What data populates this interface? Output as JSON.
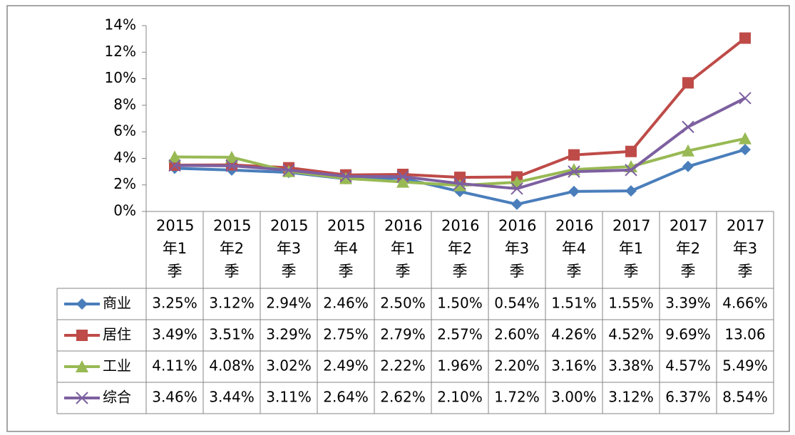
{
  "chart_data": {
    "type": "line",
    "categories": [
      "2015年1季",
      "2015年2季",
      "2015年3季",
      "2015年4季",
      "2016年1季",
      "2016年2季",
      "2016年3季",
      "2016年4季",
      "2017年1季",
      "2017年2季",
      "2017年3季"
    ],
    "series": [
      {
        "name": "商业",
        "color": "#4a7ebb",
        "marker": "diamond",
        "values": [
          3.25,
          3.12,
          2.94,
          2.46,
          2.5,
          1.5,
          0.54,
          1.51,
          1.55,
          3.39,
          4.66
        ],
        "value_labels": [
          "3.25%",
          "3.12%",
          "2.94%",
          "2.46%",
          "2.50%",
          "1.50%",
          "0.54%",
          "1.51%",
          "1.55%",
          "3.39%",
          "4.66%"
        ]
      },
      {
        "name": "居住",
        "color": "#be4b48",
        "marker": "square",
        "values": [
          3.49,
          3.51,
          3.29,
          2.75,
          2.79,
          2.57,
          2.6,
          4.26,
          4.52,
          9.69,
          13.06
        ],
        "value_labels": [
          "3.49%",
          "3.51%",
          "3.29%",
          "2.75%",
          "2.79%",
          "2.57%",
          "2.60%",
          "4.26%",
          "4.52%",
          "9.69%",
          "13.06"
        ]
      },
      {
        "name": "工业",
        "color": "#98b954",
        "marker": "triangle",
        "values": [
          4.11,
          4.08,
          3.02,
          2.49,
          2.22,
          1.96,
          2.2,
          3.16,
          3.38,
          4.57,
          5.49
        ],
        "value_labels": [
          "4.11%",
          "4.08%",
          "3.02%",
          "2.49%",
          "2.22%",
          "1.96%",
          "2.20%",
          "3.16%",
          "3.38%",
          "4.57%",
          "5.49%"
        ]
      },
      {
        "name": "综合",
        "color": "#7d60a0",
        "marker": "x",
        "values": [
          3.46,
          3.44,
          3.11,
          2.64,
          2.62,
          2.1,
          1.72,
          3.0,
          3.12,
          6.37,
          8.54
        ],
        "value_labels": [
          "3.46%",
          "3.44%",
          "3.11%",
          "2.64%",
          "2.62%",
          "2.10%",
          "1.72%",
          "3.00%",
          "3.12%",
          "6.37%",
          "8.54%"
        ]
      }
    ],
    "ylim": [
      0,
      14
    ],
    "yticks": [
      {
        "value": 0,
        "label": "0%"
      },
      {
        "value": 2,
        "label": "2%"
      },
      {
        "value": 4,
        "label": "4%"
      },
      {
        "value": 6,
        "label": "6%"
      },
      {
        "value": 8,
        "label": "8%"
      },
      {
        "value": 10,
        "label": "10%"
      },
      {
        "value": 12,
        "label": "12%"
      },
      {
        "value": 14,
        "label": "14%"
      }
    ],
    "grid": false
  }
}
